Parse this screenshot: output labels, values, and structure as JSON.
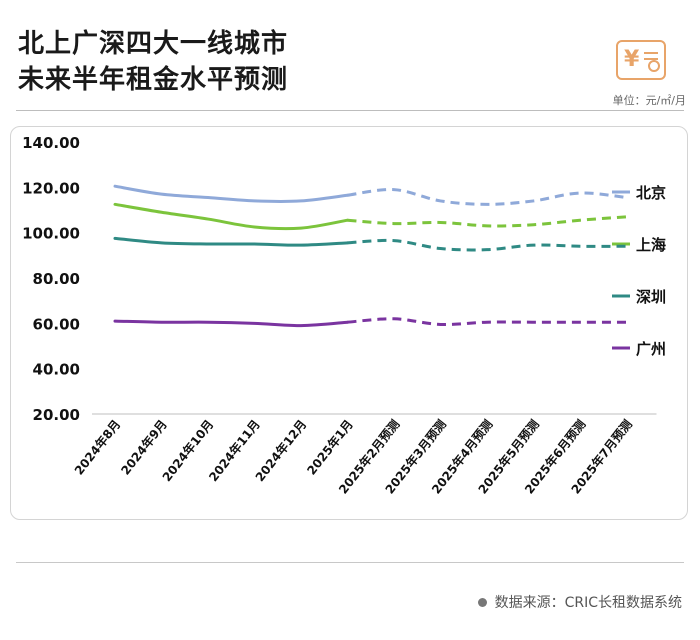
{
  "title": {
    "line1": "北上广深四大一线城市",
    "line2": "未来半年租金水平预测"
  },
  "unit": "单位：元/㎡/月",
  "source": "数据来源：CRIC长租数据系统",
  "chart_data": {
    "type": "line",
    "categories": [
      "2024年8月",
      "2024年9月",
      "2024年10月",
      "2024年11月",
      "2024年12月",
      "2025年1月",
      "2025年2月预测",
      "2025年3月预测",
      "2025年4月预测",
      "2025年5月预测",
      "2025年6月预测",
      "2025年7月预测"
    ],
    "forecast_start_index": 5,
    "ylim": [
      20,
      140
    ],
    "yticks": [
      "20.00",
      "40.00",
      "60.00",
      "80.00",
      "100.00",
      "120.00",
      "140.00"
    ],
    "legend_position": "right",
    "series": [
      {
        "name": "北京",
        "color": "#8fa9d9",
        "values": [
          120.5,
          117,
          115.5,
          114,
          114,
          116.5,
          119,
          114,
          112.5,
          114,
          117.5,
          115.5
        ]
      },
      {
        "name": "上海",
        "color": "#7cc43c",
        "values": [
          112.5,
          109,
          106,
          102.5,
          102,
          105.5,
          104,
          104.5,
          103,
          103.5,
          105.5,
          107
        ]
      },
      {
        "name": "深圳",
        "color": "#2f8a84",
        "values": [
          97.5,
          95.5,
          95,
          95,
          94.5,
          95.5,
          96.5,
          93,
          92.5,
          94.5,
          94,
          94
        ]
      },
      {
        "name": "广州",
        "color": "#7a34a0",
        "values": [
          61,
          60.5,
          60.5,
          60,
          59,
          60.5,
          62,
          59.5,
          60.5,
          60.5,
          60.5,
          60.5
        ]
      }
    ]
  }
}
